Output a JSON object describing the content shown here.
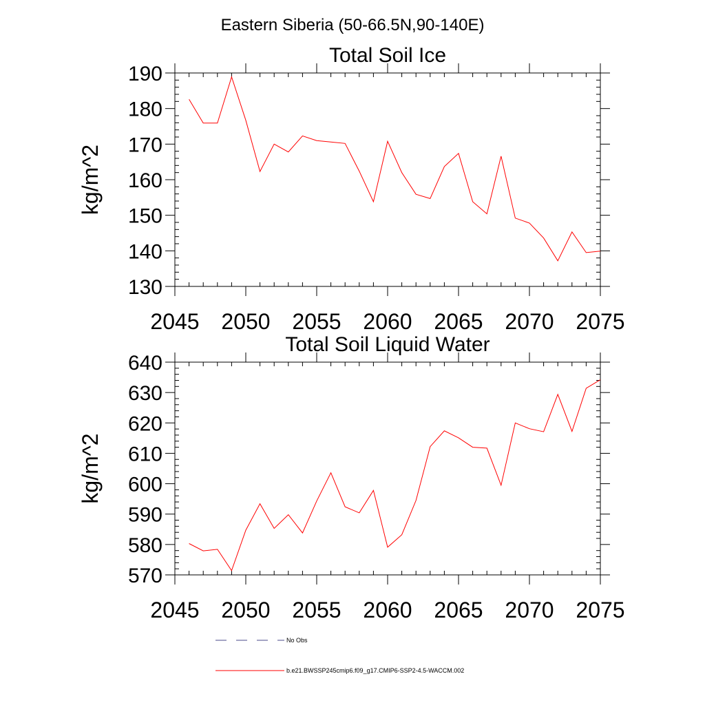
{
  "figure_title": "Eastern Siberia (50-66.5N,90-140E)",
  "chart_data": [
    {
      "type": "line",
      "title": "Total Soil Ice",
      "xlabel": "",
      "ylabel": "kg/m^2",
      "xlim": [
        2045,
        2075
      ],
      "ylim": [
        130,
        190
      ],
      "xticks": [
        2045,
        2050,
        2055,
        2060,
        2065,
        2070,
        2075
      ],
      "yticks": [
        130,
        140,
        150,
        160,
        170,
        180,
        190
      ],
      "grid": false,
      "series": [
        {
          "name": "b.e21.BWSSP245cmip6.f09_g17.CMIP6-SSP2-4.5-WACCM.002",
          "color": "#ff0000",
          "x": [
            2046,
            2047,
            2048,
            2049,
            2050,
            2051,
            2052,
            2053,
            2054,
            2055,
            2056,
            2057,
            2058,
            2059,
            2060,
            2061,
            2062,
            2063,
            2064,
            2065,
            2066,
            2067,
            2068,
            2069,
            2070,
            2071,
            2072,
            2073,
            2074,
            2075
          ],
          "y": [
            182.6,
            175.9,
            175.9,
            188.9,
            176.7,
            162.3,
            170.0,
            167.8,
            172.3,
            171.0,
            170.6,
            170.2,
            162.4,
            153.8,
            170.8,
            162.0,
            155.9,
            154.7,
            163.7,
            167.4,
            153.8,
            150.4,
            166.6,
            149.2,
            147.8,
            143.6,
            137.2,
            145.3,
            139.5,
            139.9
          ]
        }
      ]
    },
    {
      "type": "line",
      "title": "Total Soil Liquid Water",
      "xlabel": "",
      "ylabel": "kg/m^2",
      "xlim": [
        2045,
        2075
      ],
      "ylim": [
        570,
        640
      ],
      "xticks": [
        2045,
        2050,
        2055,
        2060,
        2065,
        2070,
        2075
      ],
      "yticks": [
        570,
        580,
        590,
        600,
        610,
        620,
        630,
        640
      ],
      "grid": false,
      "series": [
        {
          "name": "b.e21.BWSSP245cmip6.f09_g17.CMIP6-SSP2-4.5-WACCM.002",
          "color": "#ff0000",
          "x": [
            2046,
            2047,
            2048,
            2049,
            2050,
            2051,
            2052,
            2053,
            2054,
            2055,
            2056,
            2057,
            2058,
            2059,
            2060,
            2061,
            2062,
            2063,
            2064,
            2065,
            2066,
            2067,
            2068,
            2069,
            2070,
            2071,
            2072,
            2073,
            2074,
            2075
          ],
          "y": [
            580.3,
            577.9,
            578.4,
            571.4,
            584.7,
            593.4,
            585.3,
            589.8,
            583.8,
            594.3,
            603.6,
            592.4,
            590.4,
            597.8,
            579.1,
            583.2,
            594.5,
            612.2,
            617.4,
            615.1,
            612.0,
            611.7,
            599.5,
            620.0,
            618.1,
            617.1,
            629.4,
            617.2,
            631.4,
            634.2
          ]
        }
      ]
    }
  ],
  "legend": {
    "placement": "bottom",
    "items": [
      {
        "label": "No Obs",
        "color": "#4a4a8a",
        "style": "dashed"
      },
      {
        "label": "b.e21.BWSSP245cmip6.f09_g17.CMIP6-SSP2-4.5-WACCM.002",
        "color": "#ff0000",
        "style": "solid"
      }
    ]
  }
}
